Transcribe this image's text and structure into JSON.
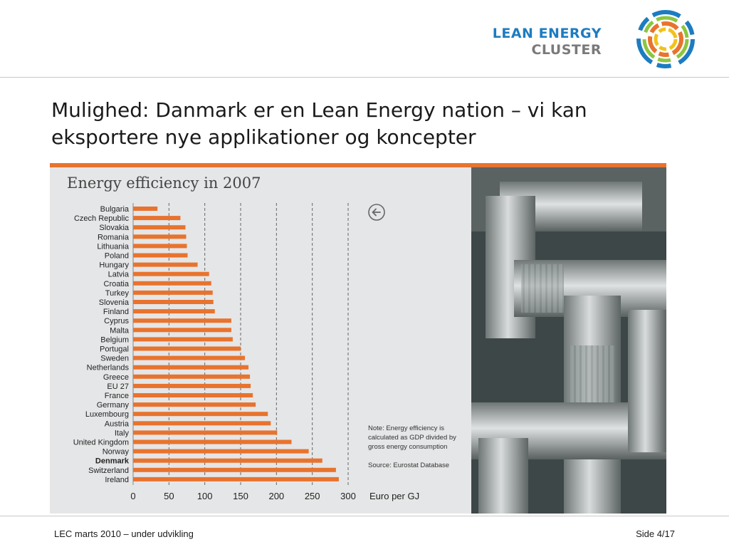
{
  "header": {
    "logo_line1": "LEAN ENERGY",
    "logo_line2": "CLUSTER"
  },
  "slide": {
    "title": "Mulighed: Danmark er en Lean Energy nation – vi kan eksportere nye applikationer og koncepter"
  },
  "colors": {
    "bar": "#e8732e",
    "accent_blue": "#1d7cc1",
    "panel_bg": "#e5e6e7"
  },
  "chart_data": {
    "type": "bar",
    "orientation": "horizontal",
    "title": "Energy efficiency in 2007",
    "xlabel": "Euro per GJ",
    "xlim": [
      0,
      300
    ],
    "xticks": [
      0,
      50,
      100,
      150,
      200,
      250,
      300
    ],
    "grid": "dashed vertical lines",
    "highlight": "Denmark",
    "categories": [
      "Bulgaria",
      "Czech Republic",
      "Slovakia",
      "Romania",
      "Lithuania",
      "Poland",
      "Hungary",
      "Latvia",
      "Croatia",
      "Turkey",
      "Slovenia",
      "Finland",
      "Cyprus",
      "Malta",
      "Belgium",
      "Portugal",
      "Sweden",
      "Netherlands",
      "Greece",
      "EU 27",
      "France",
      "Germany",
      "Luxembourg",
      "Austria",
      "Italy",
      "United Kingdom",
      "Norway",
      "Denmark",
      "Switzerland",
      "Ireland"
    ],
    "values": [
      34,
      66,
      73,
      74,
      75,
      76,
      90,
      106,
      109,
      111,
      112,
      114,
      137,
      137,
      139,
      150,
      156,
      161,
      163,
      164,
      167,
      171,
      188,
      192,
      201,
      221,
      245,
      264,
      283,
      287
    ],
    "note": "Note: Energy efficiency is calculated as GDP divided by gross energy consumption",
    "source": "Source: Eurostat Database"
  },
  "footer": {
    "left": "LEC marts 2010 – under udvikling",
    "right": "Side 4/17"
  }
}
